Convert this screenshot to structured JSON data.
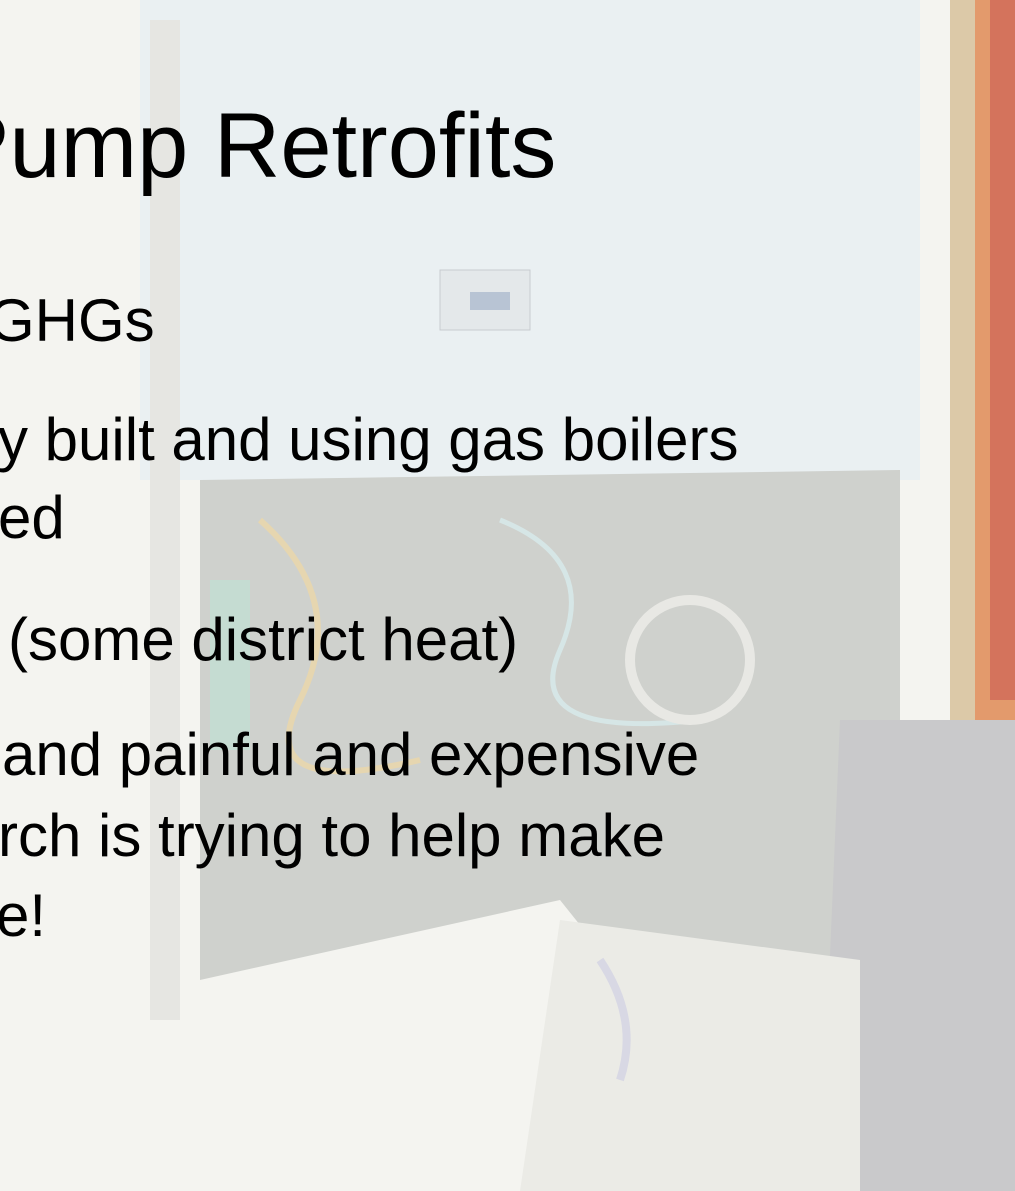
{
  "title": "Pump Retrofits",
  "lines": [
    "GHGs",
    "y built and using gas boilers",
    "ed",
    "(some district heat)",
    "and painful and expensive",
    "rch is trying to help make",
    "e!"
  ]
}
